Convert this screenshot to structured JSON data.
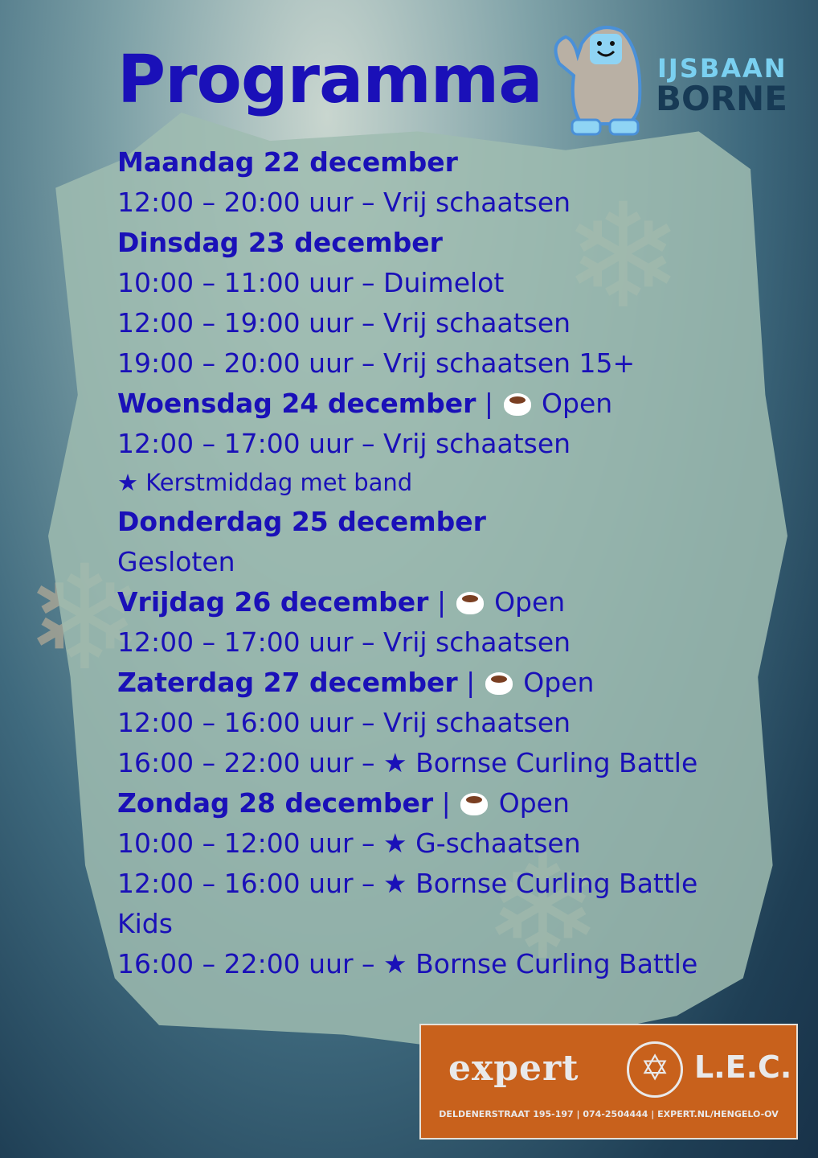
{
  "title": "Programma",
  "logo": {
    "line1": "IJSBAAN",
    "line2": "BORNE"
  },
  "colors": {
    "text": "#1a10b8",
    "sponsor_bg": "#c8611c"
  },
  "open_label": "Open",
  "schedule": [
    {
      "type": "heading",
      "text": "Maandag 22 december",
      "open": false
    },
    {
      "type": "item",
      "text": "12:00 – 20:00 uur – Vrij schaatsen"
    },
    {
      "type": "heading",
      "text": "Dinsdag 23 december",
      "open": false
    },
    {
      "type": "item",
      "text": "10:00 – 11:00 uur – Duimelot"
    },
    {
      "type": "item",
      "text": "12:00 – 19:00 uur – Vrij schaatsen"
    },
    {
      "type": "item",
      "text": "19:00 – 20:00 uur – Vrij schaatsen 15+"
    },
    {
      "type": "heading",
      "text": "Woensdag 24 december",
      "open": true
    },
    {
      "type": "item",
      "text": "12:00 – 17:00 uur – Vrij schaatsen"
    },
    {
      "type": "small",
      "text": "★ Kerstmiddag met band"
    },
    {
      "type": "heading",
      "text": "Donderdag 25 december",
      "open": false
    },
    {
      "type": "item",
      "text": "Gesloten"
    },
    {
      "type": "heading",
      "text": "Vrijdag 26 december",
      "open": true
    },
    {
      "type": "item",
      "text": "12:00 – 17:00 uur – Vrij schaatsen"
    },
    {
      "type": "heading",
      "text": "Zaterdag 27 december",
      "open": true
    },
    {
      "type": "item",
      "text": "12:00 – 16:00 uur – Vrij schaatsen"
    },
    {
      "type": "item",
      "text": "16:00 – 22:00 uur – ★ Bornse Curling Battle"
    },
    {
      "type": "heading",
      "text": "Zondag 28 december",
      "open": true
    },
    {
      "type": "item",
      "text": "10:00 – 12:00 uur – ★ G-schaatsen"
    },
    {
      "type": "item",
      "text": "12:00 – 16:00 uur – ★ Bornse Curling Battle"
    },
    {
      "type": "item",
      "text": "Kids"
    },
    {
      "type": "item",
      "text": "16:00 – 22:00 uur – ★ Bornse Curling Battle"
    }
  ],
  "sponsor": {
    "brand": "expert",
    "name": "L.E.C.",
    "address": "DELDENERSTRAAT 195-197  |  074-2504444  |  EXPERT.NL/HENGELO-OV"
  }
}
